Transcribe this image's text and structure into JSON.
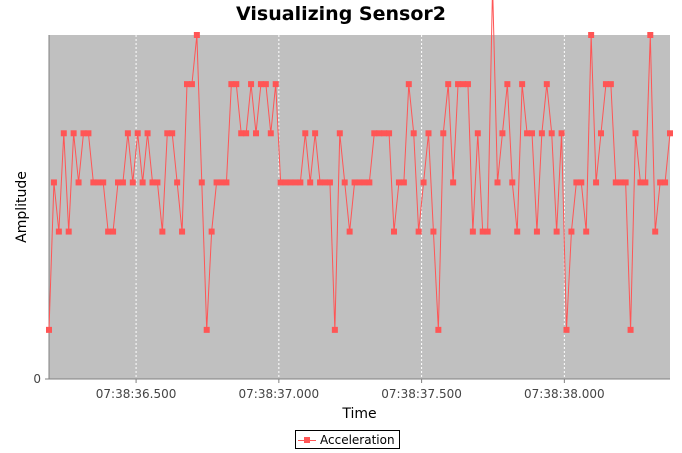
{
  "chart_data": {
    "type": "line",
    "title": "Visualizing Sensor2",
    "xlabel": "Time",
    "ylabel": "Amplitude",
    "x_ticks": [
      "07:38:36.500",
      "07:38:37.000",
      "07:38:37.500",
      "07:38:38.000"
    ],
    "y_ticks": [
      "0"
    ],
    "grid": true,
    "legend_position": "bottom-center",
    "series": [
      {
        "name": "Acceleration",
        "color": "#ff5555",
        "values": [
          1,
          4,
          3,
          5,
          3,
          5,
          4,
          5,
          5,
          4,
          4,
          4,
          3,
          3,
          4,
          4,
          5,
          4,
          5,
          4,
          5,
          4,
          4,
          3,
          5,
          5,
          4,
          3,
          6,
          6,
          7,
          4,
          1,
          3,
          4,
          4,
          4,
          6,
          6,
          5,
          5,
          6,
          5,
          6,
          6,
          5,
          6,
          4,
          4,
          4,
          4,
          4,
          5,
          4,
          5,
          4,
          4,
          4,
          1,
          5,
          4,
          3,
          4,
          4,
          4,
          4,
          5,
          5,
          5,
          5,
          3,
          4,
          4,
          6,
          5,
          3,
          4,
          5,
          3,
          1,
          5,
          6,
          4,
          6,
          6,
          6,
          3,
          5,
          3,
          3,
          8,
          4,
          5,
          6,
          4,
          3,
          6,
          5,
          5,
          3,
          5,
          6,
          5,
          3,
          5,
          1,
          3,
          4,
          4,
          3,
          7,
          4,
          5,
          6,
          6,
          4,
          4,
          4,
          1,
          5,
          4,
          4,
          7,
          3,
          4,
          4,
          5
        ]
      }
    ],
    "x_range_seconds": [
      "07:38:36.195",
      "07:38:38.370"
    ],
    "y_range": [
      0,
      7.0
    ]
  }
}
